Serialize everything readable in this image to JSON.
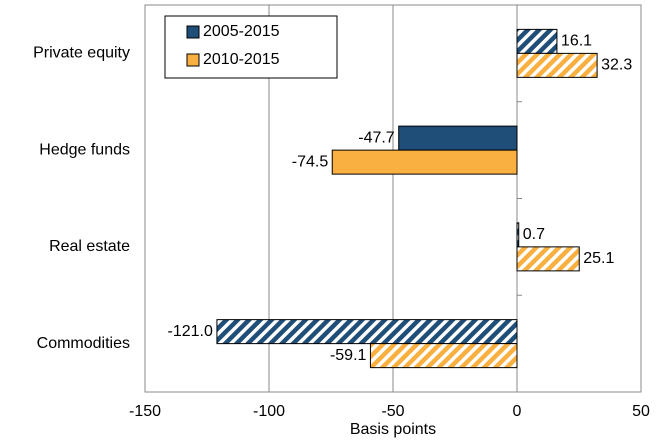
{
  "chart_data": {
    "type": "hbar",
    "xlabel": "Basis points",
    "categories": [
      "Private equity",
      "Hedge funds",
      "Real estate",
      "Commodities"
    ],
    "series": [
      {
        "name": "2005-2015",
        "color": "#1f4e79",
        "values": [
          16.1,
          -47.7,
          0.7,
          -121.0
        ],
        "value_labels": [
          "16.1",
          "-47.7",
          "0.7",
          "-121.0"
        ],
        "hatch": [
          true,
          false,
          true,
          true
        ]
      },
      {
        "name": "2010-2015",
        "color": "#f9b040",
        "values": [
          32.3,
          -74.5,
          25.1,
          -59.1
        ],
        "hatch": [
          true,
          false,
          true,
          true
        ]
      }
    ],
    "xlim": [
      -150,
      50
    ],
    "xticks": [
      -150,
      -100,
      -50,
      0,
      50
    ],
    "grid": true,
    "legend": "top-left"
  }
}
